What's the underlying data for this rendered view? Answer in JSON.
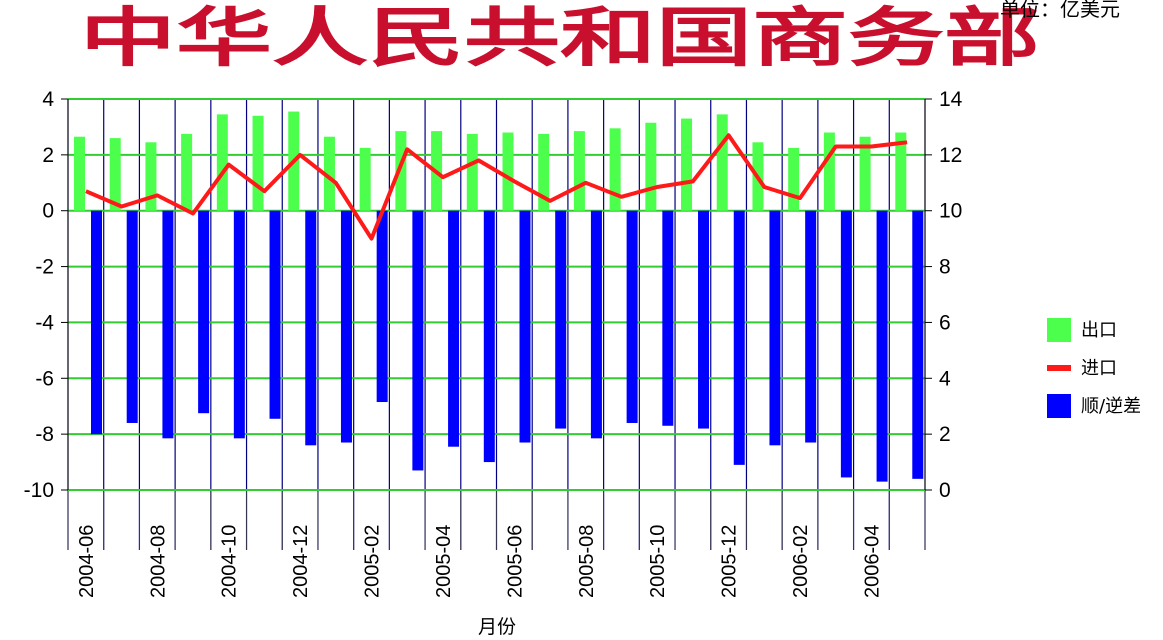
{
  "banner_text": "中华人民共和国商务部",
  "unit_label": "单位：亿美元",
  "chart_data": {
    "type": "bar",
    "xlabel": "月份",
    "ylim_left": [
      -10,
      4
    ],
    "ylim_right": [
      0,
      14
    ],
    "yticks_left": [
      4,
      2,
      0,
      -2,
      -4,
      -6,
      -8,
      -10
    ],
    "yticks_right": [
      14,
      12,
      10,
      8,
      6,
      4,
      2,
      0
    ],
    "x_tick_labels": [
      "2004-06",
      "2004-08",
      "2004-10",
      "2004-12",
      "2005-02",
      "2005-04",
      "2005-06",
      "2005-08",
      "2005-10",
      "2005-12",
      "2006-02",
      "2006-04"
    ],
    "grid": true,
    "legend_position": "right",
    "series": [
      {
        "name": "出口",
        "kind": "bar",
        "axis": "right",
        "color": "#4cff4c",
        "values": [
          12.65,
          12.6,
          12.45,
          12.75,
          13.45,
          13.4,
          13.55,
          12.65,
          12.25,
          12.85,
          12.85,
          12.75,
          12.8,
          12.75,
          12.85,
          12.95,
          13.15,
          13.3,
          13.45,
          12.45,
          12.25,
          12.8,
          12.65,
          12.8
        ]
      },
      {
        "name": "进口",
        "kind": "line",
        "axis": "right",
        "color": "#ff1a1a",
        "values": [
          10.7,
          10.15,
          10.55,
          9.9,
          11.65,
          10.7,
          12.0,
          11.0,
          9.0,
          12.2,
          11.2,
          11.8,
          11.05,
          10.35,
          11.0,
          10.5,
          10.85,
          11.05,
          12.7,
          10.85,
          10.45,
          12.3,
          12.3,
          12.45
        ]
      },
      {
        "name": "顺/逆差",
        "kind": "bar",
        "axis": "left",
        "color": "#0000ff",
        "values": [
          -8.0,
          -7.6,
          -8.15,
          -7.25,
          -8.15,
          -7.45,
          -8.4,
          -8.3,
          -6.85,
          -9.3,
          -8.45,
          -9.0,
          -8.3,
          -7.8,
          -8.15,
          -7.6,
          -7.7,
          -7.8,
          -9.1,
          -8.4,
          -8.3,
          -9.55,
          -9.7,
          -9.6
        ]
      }
    ]
  }
}
